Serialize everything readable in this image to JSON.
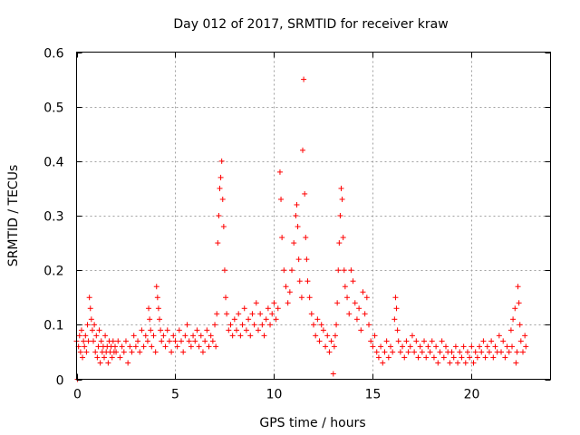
{
  "chart_data": {
    "type": "scatter",
    "title": "Day 012 of 2017, SRMTID for receiver kraw",
    "xlabel": "GPS time / hours",
    "ylabel": "SRMTID / TECUs",
    "xlim": [
      0,
      24
    ],
    "ylim": [
      0,
      0.6
    ],
    "xticks": [
      0,
      5,
      10,
      15,
      20
    ],
    "xtick_labels": [
      "0",
      "5",
      "10",
      "15",
      "20"
    ],
    "yticks": [
      0,
      0.1,
      0.2,
      0.3,
      0.4,
      0.5,
      0.6
    ],
    "ytick_labels": [
      "0",
      "0.1",
      "0.2",
      "0.3",
      "0.4",
      "0.5",
      "0.6"
    ],
    "grid": true,
    "marker": "+",
    "series": [
      {
        "name": "SRMTID",
        "color": "#ff0000",
        "points": [
          [
            0.0,
            0.07
          ],
          [
            0.05,
            0.0
          ],
          [
            0.1,
            0.06
          ],
          [
            0.15,
            0.08
          ],
          [
            0.2,
            0.05
          ],
          [
            0.25,
            0.09
          ],
          [
            0.3,
            0.04
          ],
          [
            0.35,
            0.07
          ],
          [
            0.4,
            0.06
          ],
          [
            0.45,
            0.08
          ],
          [
            0.5,
            0.05
          ],
          [
            0.55,
            0.1
          ],
          [
            0.6,
            0.07
          ],
          [
            0.65,
            0.15
          ],
          [
            0.7,
            0.13
          ],
          [
            0.75,
            0.11
          ],
          [
            0.8,
            0.09
          ],
          [
            0.85,
            0.07
          ],
          [
            0.9,
            0.1
          ],
          [
            0.95,
            0.05
          ],
          [
            1.0,
            0.08
          ],
          [
            1.05,
            0.04
          ],
          [
            1.1,
            0.06
          ],
          [
            1.15,
            0.09
          ],
          [
            1.2,
            0.03
          ],
          [
            1.25,
            0.07
          ],
          [
            1.3,
            0.05
          ],
          [
            1.35,
            0.06
          ],
          [
            1.4,
            0.04
          ],
          [
            1.45,
            0.08
          ],
          [
            1.5,
            0.05
          ],
          [
            1.55,
            0.06
          ],
          [
            1.6,
            0.03
          ],
          [
            1.65,
            0.07
          ],
          [
            1.7,
            0.05
          ],
          [
            1.75,
            0.06
          ],
          [
            1.8,
            0.04
          ],
          [
            1.85,
            0.07
          ],
          [
            1.9,
            0.05
          ],
          [
            1.95,
            0.06
          ],
          [
            2.0,
            0.05
          ],
          [
            2.1,
            0.07
          ],
          [
            2.2,
            0.04
          ],
          [
            2.3,
            0.06
          ],
          [
            2.4,
            0.05
          ],
          [
            2.5,
            0.07
          ],
          [
            2.6,
            0.03
          ],
          [
            2.7,
            0.06
          ],
          [
            2.8,
            0.05
          ],
          [
            2.9,
            0.08
          ],
          [
            3.0,
            0.06
          ],
          [
            3.1,
            0.07
          ],
          [
            3.2,
            0.05
          ],
          [
            3.3,
            0.09
          ],
          [
            3.4,
            0.06
          ],
          [
            3.5,
            0.08
          ],
          [
            3.6,
            0.07
          ],
          [
            3.65,
            0.13
          ],
          [
            3.7,
            0.11
          ],
          [
            3.75,
            0.09
          ],
          [
            3.8,
            0.06
          ],
          [
            3.9,
            0.08
          ],
          [
            4.0,
            0.05
          ],
          [
            4.05,
            0.17
          ],
          [
            4.1,
            0.15
          ],
          [
            4.15,
            0.13
          ],
          [
            4.2,
            0.11
          ],
          [
            4.25,
            0.09
          ],
          [
            4.3,
            0.07
          ],
          [
            4.4,
            0.08
          ],
          [
            4.5,
            0.06
          ],
          [
            4.6,
            0.09
          ],
          [
            4.7,
            0.07
          ],
          [
            4.8,
            0.05
          ],
          [
            4.9,
            0.08
          ],
          [
            5.0,
            0.07
          ],
          [
            5.1,
            0.06
          ],
          [
            5.2,
            0.09
          ],
          [
            5.3,
            0.07
          ],
          [
            5.4,
            0.05
          ],
          [
            5.5,
            0.08
          ],
          [
            5.6,
            0.1
          ],
          [
            5.7,
            0.07
          ],
          [
            5.8,
            0.06
          ],
          [
            5.9,
            0.08
          ],
          [
            6.0,
            0.07
          ],
          [
            6.1,
            0.09
          ],
          [
            6.2,
            0.06
          ],
          [
            6.3,
            0.08
          ],
          [
            6.4,
            0.05
          ],
          [
            6.5,
            0.07
          ],
          [
            6.6,
            0.09
          ],
          [
            6.7,
            0.06
          ],
          [
            6.8,
            0.08
          ],
          [
            6.9,
            0.07
          ],
          [
            7.0,
            0.1
          ],
          [
            7.05,
            0.06
          ],
          [
            7.1,
            0.12
          ],
          [
            7.15,
            0.25
          ],
          [
            7.2,
            0.3
          ],
          [
            7.25,
            0.35
          ],
          [
            7.3,
            0.37
          ],
          [
            7.35,
            0.4
          ],
          [
            7.4,
            0.33
          ],
          [
            7.45,
            0.28
          ],
          [
            7.5,
            0.2
          ],
          [
            7.55,
            0.15
          ],
          [
            7.6,
            0.12
          ],
          [
            7.7,
            0.09
          ],
          [
            7.8,
            0.1
          ],
          [
            7.9,
            0.08
          ],
          [
            8.0,
            0.11
          ],
          [
            8.1,
            0.09
          ],
          [
            8.2,
            0.12
          ],
          [
            8.3,
            0.08
          ],
          [
            8.4,
            0.1
          ],
          [
            8.5,
            0.13
          ],
          [
            8.6,
            0.09
          ],
          [
            8.7,
            0.11
          ],
          [
            8.8,
            0.08
          ],
          [
            8.9,
            0.12
          ],
          [
            9.0,
            0.1
          ],
          [
            9.1,
            0.14
          ],
          [
            9.2,
            0.09
          ],
          [
            9.3,
            0.12
          ],
          [
            9.4,
            0.1
          ],
          [
            9.5,
            0.08
          ],
          [
            9.6,
            0.11
          ],
          [
            9.7,
            0.13
          ],
          [
            9.8,
            0.1
          ],
          [
            9.9,
            0.12
          ],
          [
            10.0,
            0.14
          ],
          [
            10.1,
            0.11
          ],
          [
            10.2,
            0.13
          ],
          [
            10.3,
            0.38
          ],
          [
            10.35,
            0.33
          ],
          [
            10.4,
            0.26
          ],
          [
            10.5,
            0.2
          ],
          [
            10.6,
            0.17
          ],
          [
            10.7,
            0.14
          ],
          [
            10.8,
            0.16
          ],
          [
            10.9,
            0.2
          ],
          [
            11.0,
            0.25
          ],
          [
            11.1,
            0.3
          ],
          [
            11.15,
            0.32
          ],
          [
            11.2,
            0.28
          ],
          [
            11.25,
            0.22
          ],
          [
            11.3,
            0.18
          ],
          [
            11.4,
            0.15
          ],
          [
            11.45,
            0.42
          ],
          [
            11.5,
            0.55
          ],
          [
            11.55,
            0.34
          ],
          [
            11.6,
            0.26
          ],
          [
            11.65,
            0.22
          ],
          [
            11.7,
            0.18
          ],
          [
            11.8,
            0.15
          ],
          [
            11.9,
            0.12
          ],
          [
            12.0,
            0.1
          ],
          [
            12.1,
            0.08
          ],
          [
            12.2,
            0.11
          ],
          [
            12.3,
            0.07
          ],
          [
            12.4,
            0.1
          ],
          [
            12.5,
            0.09
          ],
          [
            12.6,
            0.06
          ],
          [
            12.7,
            0.08
          ],
          [
            12.8,
            0.05
          ],
          [
            12.9,
            0.07
          ],
          [
            13.0,
            0.01
          ],
          [
            13.05,
            0.06
          ],
          [
            13.1,
            0.08
          ],
          [
            13.15,
            0.1
          ],
          [
            13.2,
            0.14
          ],
          [
            13.25,
            0.2
          ],
          [
            13.3,
            0.25
          ],
          [
            13.35,
            0.3
          ],
          [
            13.4,
            0.35
          ],
          [
            13.45,
            0.33
          ],
          [
            13.5,
            0.26
          ],
          [
            13.55,
            0.2
          ],
          [
            13.6,
            0.17
          ],
          [
            13.7,
            0.15
          ],
          [
            13.8,
            0.12
          ],
          [
            13.9,
            0.2
          ],
          [
            14.0,
            0.18
          ],
          [
            14.1,
            0.14
          ],
          [
            14.2,
            0.11
          ],
          [
            14.3,
            0.13
          ],
          [
            14.4,
            0.09
          ],
          [
            14.5,
            0.16
          ],
          [
            14.6,
            0.12
          ],
          [
            14.7,
            0.15
          ],
          [
            14.8,
            0.1
          ],
          [
            14.9,
            0.07
          ],
          [
            15.0,
            0.06
          ],
          [
            15.1,
            0.08
          ],
          [
            15.2,
            0.05
          ],
          [
            15.3,
            0.04
          ],
          [
            15.4,
            0.06
          ],
          [
            15.5,
            0.03
          ],
          [
            15.6,
            0.05
          ],
          [
            15.7,
            0.07
          ],
          [
            15.8,
            0.04
          ],
          [
            15.9,
            0.06
          ],
          [
            16.0,
            0.05
          ],
          [
            16.1,
            0.11
          ],
          [
            16.15,
            0.15
          ],
          [
            16.2,
            0.13
          ],
          [
            16.25,
            0.09
          ],
          [
            16.3,
            0.07
          ],
          [
            16.4,
            0.05
          ],
          [
            16.5,
            0.06
          ],
          [
            16.6,
            0.04
          ],
          [
            16.7,
            0.07
          ],
          [
            16.8,
            0.05
          ],
          [
            16.9,
            0.06
          ],
          [
            17.0,
            0.08
          ],
          [
            17.1,
            0.05
          ],
          [
            17.2,
            0.07
          ],
          [
            17.3,
            0.04
          ],
          [
            17.4,
            0.06
          ],
          [
            17.5,
            0.05
          ],
          [
            17.6,
            0.07
          ],
          [
            17.7,
            0.04
          ],
          [
            17.8,
            0.06
          ],
          [
            17.9,
            0.05
          ],
          [
            18.0,
            0.07
          ],
          [
            18.1,
            0.04
          ],
          [
            18.2,
            0.06
          ],
          [
            18.3,
            0.03
          ],
          [
            18.4,
            0.05
          ],
          [
            18.5,
            0.07
          ],
          [
            18.6,
            0.04
          ],
          [
            18.7,
            0.06
          ],
          [
            18.8,
            0.05
          ],
          [
            18.9,
            0.03
          ],
          [
            19.0,
            0.05
          ],
          [
            19.1,
            0.04
          ],
          [
            19.2,
            0.06
          ],
          [
            19.3,
            0.03
          ],
          [
            19.4,
            0.05
          ],
          [
            19.5,
            0.04
          ],
          [
            19.6,
            0.06
          ],
          [
            19.7,
            0.03
          ],
          [
            19.8,
            0.05
          ],
          [
            19.9,
            0.04
          ],
          [
            20.0,
            0.06
          ],
          [
            20.1,
            0.03
          ],
          [
            20.2,
            0.05
          ],
          [
            20.3,
            0.04
          ],
          [
            20.4,
            0.06
          ],
          [
            20.5,
            0.05
          ],
          [
            20.6,
            0.07
          ],
          [
            20.7,
            0.04
          ],
          [
            20.8,
            0.06
          ],
          [
            20.9,
            0.05
          ],
          [
            21.0,
            0.07
          ],
          [
            21.1,
            0.04
          ],
          [
            21.2,
            0.06
          ],
          [
            21.3,
            0.05
          ],
          [
            21.4,
            0.08
          ],
          [
            21.5,
            0.05
          ],
          [
            21.6,
            0.07
          ],
          [
            21.7,
            0.04
          ],
          [
            21.8,
            0.06
          ],
          [
            21.9,
            0.05
          ],
          [
            22.0,
            0.09
          ],
          [
            22.05,
            0.06
          ],
          [
            22.1,
            0.11
          ],
          [
            22.2,
            0.13
          ],
          [
            22.25,
            0.03
          ],
          [
            22.3,
            0.05
          ],
          [
            22.35,
            0.17
          ],
          [
            22.4,
            0.14
          ],
          [
            22.45,
            0.1
          ],
          [
            22.5,
            0.07
          ],
          [
            22.6,
            0.05
          ],
          [
            22.7,
            0.08
          ],
          [
            22.75,
            0.06
          ]
        ]
      }
    ]
  }
}
